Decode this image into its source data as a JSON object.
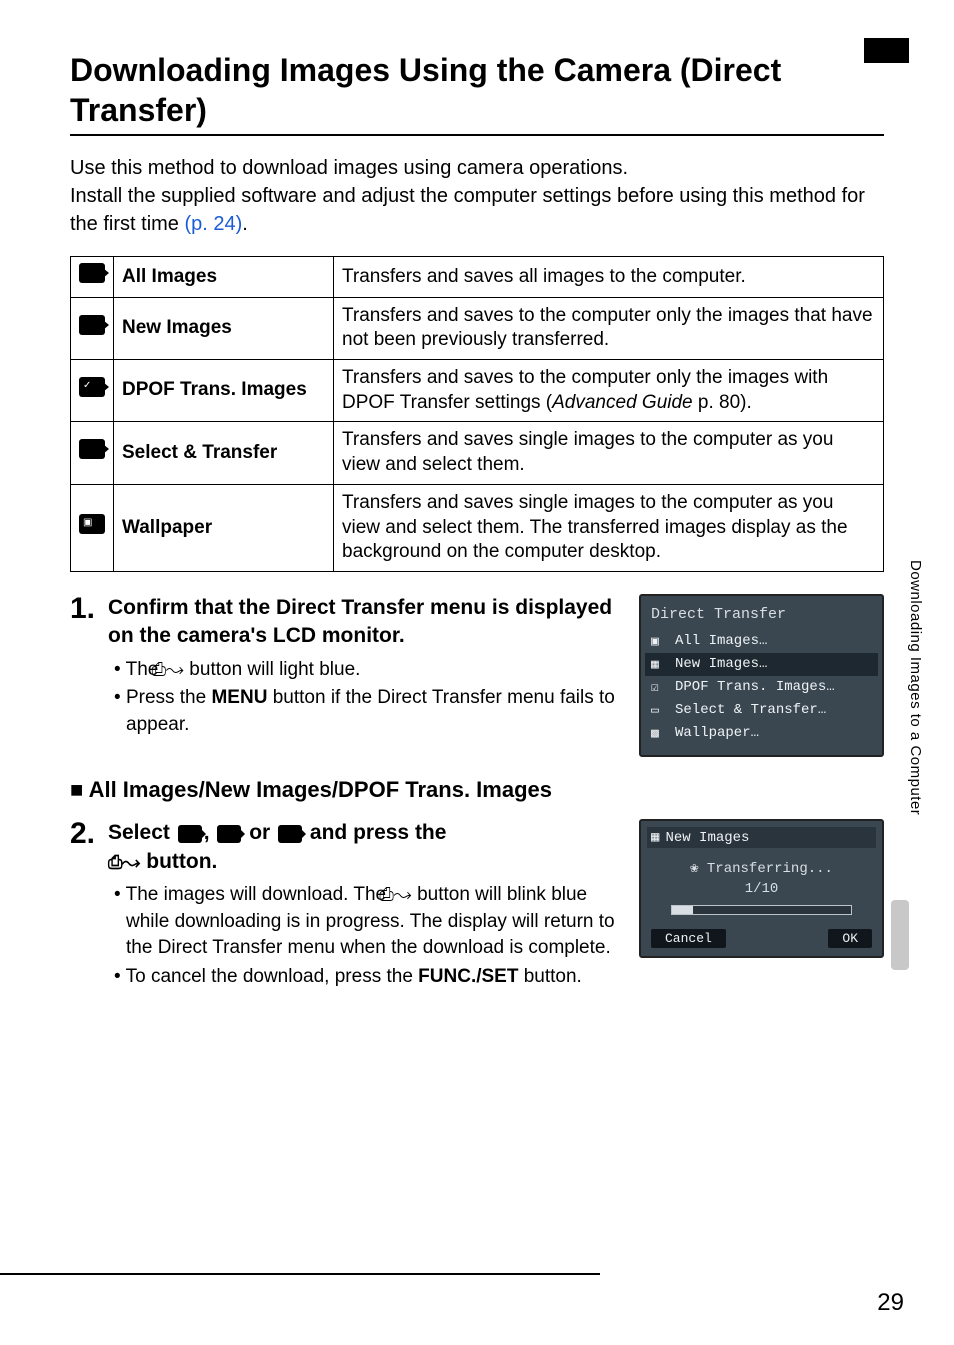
{
  "title": "Downloading Images Using the Camera (Direct Transfer)",
  "intro_line1": "Use this method to download images using camera operations.",
  "intro_line2_a": "Install the supplied software and adjust the computer settings before using this method for the first time ",
  "intro_link": "(p. 24)",
  "intro_line2_b": ".",
  "side_label": "Downloading Images to a Computer",
  "page_number": "29",
  "table": {
    "rows": [
      {
        "label": "All Images",
        "desc": "Transfers and saves all images to the computer."
      },
      {
        "label": "New Images",
        "desc": "Transfers and saves to the computer only the images that have not been previously transferred."
      },
      {
        "label": "DPOF Trans. Images",
        "desc_pre": "Transfers and saves to the computer only the images with DPOF Transfer settings (",
        "desc_italic": "Advanced Guide",
        "desc_post": " p. 80)."
      },
      {
        "label": "Select & Transfer",
        "desc": "Transfers and saves single images to the computer as you view and select them."
      },
      {
        "label": "Wallpaper",
        "desc": "Transfers and saves single images to the computer as you view and select them. The transferred images display as the background on the computer desktop."
      }
    ]
  },
  "step1": {
    "num": "1.",
    "head": "Confirm that the Direct Transfer menu is displayed on the camera's LCD monitor.",
    "b1_a": "The ",
    "b1_b": " button will light blue.",
    "b2_a": "Press the ",
    "b2_menu": "MENU",
    "b2_b": " button if the Direct Transfer menu fails to appear."
  },
  "lcd1": {
    "title": "Direct Transfer",
    "items": [
      "All Images…",
      "New Images…",
      "DPOF Trans. Images…",
      "Select & Transfer…",
      "Wallpaper…"
    ],
    "selected_index": 1
  },
  "section_head": "■ All Images/New Images/DPOF Trans. Images",
  "step2": {
    "num": "2.",
    "head_a": "Select ",
    "head_b": ", ",
    "head_c": " or ",
    "head_d": " and press the ",
    "head_e": " button.",
    "b1_a": "The images will download. The ",
    "b1_b": " button will blink blue while downloading is in progress. The display will return to the Direct Transfer menu when the download is complete.",
    "b2_a": "To cancel the download, press the ",
    "b2_func": "FUNC./SET",
    "b2_b": " button."
  },
  "lcd2": {
    "header": "New Images",
    "status": "Transferring...",
    "count": "1/10",
    "progress_pct": 12,
    "cancel": "Cancel",
    "ok": "OK"
  },
  "icons": {
    "glyphs": [
      "▣",
      "▦",
      "☑",
      "▭",
      "▩"
    ],
    "print_share": "⎙↝"
  }
}
